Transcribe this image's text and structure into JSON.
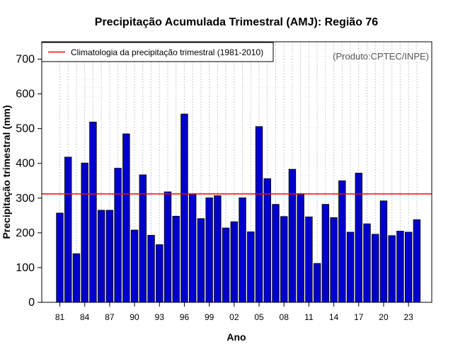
{
  "chart_data": {
    "type": "bar",
    "title": "Precipitação Acumulada Trimestral (AMJ): Região 76",
    "xlabel": "Ano",
    "ylabel": "Precipitação trimestral (mm)",
    "ylim": [
      0,
      750
    ],
    "yticks": [
      0,
      100,
      200,
      300,
      400,
      500,
      600,
      700
    ],
    "xtick_labels": [
      "81",
      "84",
      "87",
      "90",
      "93",
      "96",
      "99",
      "02",
      "05",
      "08",
      "11",
      "14",
      "17",
      "20",
      "23"
    ],
    "xtick_years": [
      1981,
      1984,
      1987,
      1990,
      1993,
      1996,
      1999,
      2002,
      2005,
      2008,
      2011,
      2014,
      2017,
      2020,
      2023
    ],
    "categories": [
      1981,
      1982,
      1983,
      1984,
      1985,
      1986,
      1987,
      1988,
      1989,
      1990,
      1991,
      1992,
      1993,
      1994,
      1995,
      1996,
      1997,
      1998,
      1999,
      2000,
      2001,
      2002,
      2003,
      2004,
      2005,
      2006,
      2007,
      2008,
      2009,
      2010,
      2011,
      2012,
      2013,
      2014,
      2015,
      2016,
      2017,
      2018,
      2019,
      2020,
      2021,
      2022,
      2023,
      2024
    ],
    "values": [
      257,
      418,
      140,
      401,
      519,
      265,
      265,
      386,
      485,
      208,
      367,
      193,
      166,
      318,
      248,
      542,
      311,
      241,
      301,
      307,
      214,
      232,
      301,
      203,
      506,
      356,
      282,
      247,
      383,
      313,
      246,
      112,
      282,
      244,
      350,
      202,
      372,
      226,
      196,
      292,
      192,
      205,
      202,
      238
    ],
    "bar_color": "#0000CD",
    "climatology": {
      "value": 312,
      "label": "Climatologia da precipitação trimestral (1981-2010)",
      "color": "#FF0000"
    },
    "legend_position": "top-left",
    "grid": "vertical dotted",
    "credit": "(Produto:CPTEC/INPE)"
  }
}
